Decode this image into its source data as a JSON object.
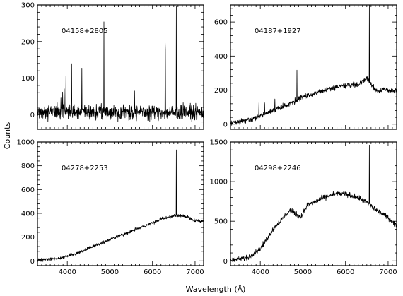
{
  "figure": {
    "ylabel": "Counts",
    "xlabel": "Wavelength (Å)"
  },
  "chart_data": [
    {
      "type": "line",
      "panel": "top-left",
      "label": "04158+2805",
      "xlim": [
        3300,
        7200
      ],
      "ylim": [
        -40,
        300
      ],
      "xticks": [
        4000,
        5000,
        6000,
        7000
      ],
      "yticks": [
        0,
        100,
        200,
        300
      ],
      "show_x_tick_labels": false,
      "series": [
        {
          "continuum": [
            [
              3300,
              8
            ],
            [
              7200,
              5
            ]
          ],
          "noise": 15,
          "lines": [
            [
              3850,
              40
            ],
            [
              3890,
              55
            ],
            [
              3930,
              80
            ],
            [
              3970,
              95
            ],
            [
              4100,
              115
            ],
            [
              4340,
              125
            ],
            [
              4860,
              260
            ],
            [
              5580,
              65
            ],
            [
              6300,
              180
            ],
            [
              6560,
              285
            ],
            [
              6720,
              35
            ]
          ]
        }
      ]
    },
    {
      "type": "line",
      "panel": "top-right",
      "label": "04187+1927",
      "xlim": [
        3300,
        7200
      ],
      "ylim": [
        -30,
        700
      ],
      "xticks": [
        4000,
        5000,
        6000,
        7000
      ],
      "yticks": [
        0,
        200,
        400,
        600
      ],
      "show_x_tick_labels": false,
      "series": [
        {
          "continuum": [
            [
              3300,
              5
            ],
            [
              3800,
              30
            ],
            [
              4200,
              70
            ],
            [
              4600,
              110
            ],
            [
              5000,
              160
            ],
            [
              5500,
              200
            ],
            [
              6000,
              230
            ],
            [
              6300,
              235
            ],
            [
              6500,
              270
            ],
            [
              6700,
              200
            ],
            [
              7000,
              200
            ],
            [
              7200,
              190
            ]
          ],
          "noise": 12,
          "lines": [
            [
              3970,
              80
            ],
            [
              4100,
              60
            ],
            [
              4340,
              70
            ],
            [
              4860,
              180
            ],
            [
              6560,
              520
            ]
          ]
        }
      ]
    },
    {
      "type": "line",
      "panel": "bottom-left",
      "label": "04278+2253",
      "xlim": [
        3300,
        7200
      ],
      "ylim": [
        -40,
        1000
      ],
      "xticks": [
        4000,
        5000,
        6000,
        7000
      ],
      "yticks": [
        0,
        200,
        400,
        600,
        800,
        1000
      ],
      "xtick_labels": [
        "4000",
        "5000",
        "6000",
        "7000"
      ],
      "series": [
        {
          "continuum": [
            [
              3300,
              5
            ],
            [
              3800,
              20
            ],
            [
              4200,
              60
            ],
            [
              4600,
              120
            ],
            [
              5000,
              180
            ],
            [
              5400,
              235
            ],
            [
              5800,
              290
            ],
            [
              6200,
              350
            ],
            [
              6500,
              380
            ],
            [
              6800,
              375
            ],
            [
              7000,
              340
            ],
            [
              7200,
              330
            ]
          ],
          "noise": 10,
          "lines": [
            [
              6560,
              560
            ]
          ]
        }
      ]
    },
    {
      "type": "line",
      "panel": "bottom-right",
      "label": "04298+2246",
      "xlim": [
        3300,
        7200
      ],
      "ylim": [
        -60,
        1500
      ],
      "xticks": [
        4000,
        5000,
        6000,
        7000
      ],
      "yticks": [
        0,
        500,
        1000,
        1500
      ],
      "xtick_labels": [
        "4000",
        "5000",
        "6000",
        "7000"
      ],
      "series": [
        {
          "continuum": [
            [
              3300,
              10
            ],
            [
              3700,
              40
            ],
            [
              4000,
              150
            ],
            [
              4300,
              400
            ],
            [
              4700,
              640
            ],
            [
              4950,
              550
            ],
            [
              5100,
              700
            ],
            [
              5500,
              800
            ],
            [
              5800,
              850
            ],
            [
              6000,
              840
            ],
            [
              6300,
              800
            ],
            [
              6500,
              740
            ],
            [
              6700,
              650
            ],
            [
              7000,
              550
            ],
            [
              7200,
              440
            ]
          ],
          "noise": 25,
          "lines": [
            [
              6560,
              750
            ]
          ]
        }
      ]
    }
  ]
}
